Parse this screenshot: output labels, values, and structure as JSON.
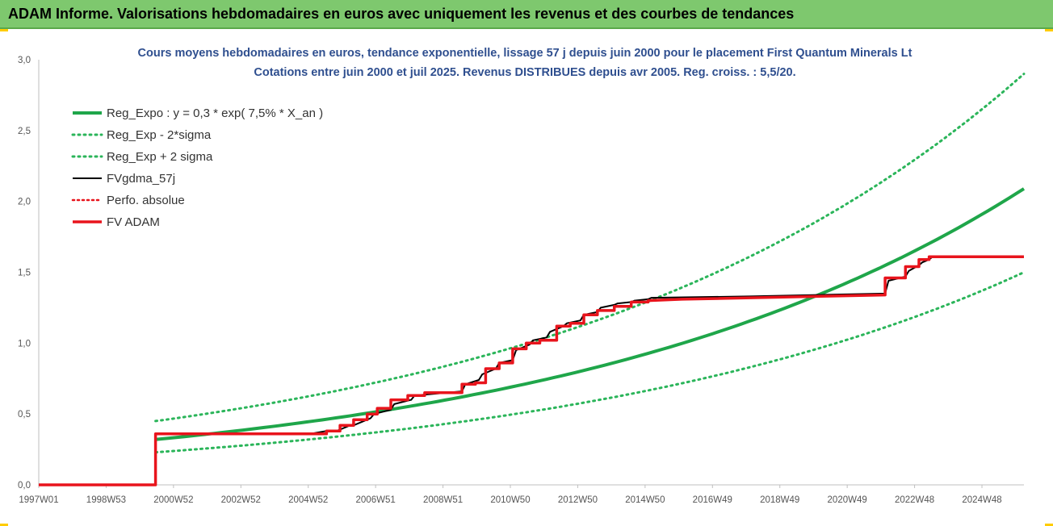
{
  "header": {
    "title": "ADAM Informe. Valorisations hebdomadaires en euros avec uniquement les revenus et des courbes de tendances"
  },
  "colors": {
    "header_bg": "#7ec86e",
    "reg_green": "#1fa64a",
    "band_green": "#2bb55a",
    "fv_black": "#000000",
    "fv_red": "#e8141c"
  },
  "chart_data": {
    "type": "line",
    "title_line1": "Cours moyens hebdomadaires en euros, tendance exponentielle, lissage 57 j depuis juin 2000 pour le placement First Quantum Minerals Lt",
    "title_line2": "Cotations entre juin 2000 et juil 2025. Revenus DISTRIBUES depuis avr 2005. Reg. croiss. : 5,5/20.",
    "xlabel": "",
    "ylabel": "",
    "x_range": [
      1997.0,
      2026.1
    ],
    "ylim": [
      0,
      3.0
    ],
    "y_ticks": [
      "0,0",
      "0,5",
      "1,0",
      "1,5",
      "2,0",
      "2,5",
      "3,0"
    ],
    "y_tick_values": [
      0,
      0.5,
      1.0,
      1.5,
      2.0,
      2.5,
      3.0
    ],
    "x_ticks": [
      "1997W01",
      "1998W53",
      "2000W52",
      "2002W52",
      "2004W52",
      "2006W51",
      "2008W51",
      "2010W50",
      "2012W50",
      "2014W50",
      "2016W49",
      "2018W49",
      "2020W49",
      "2022W48",
      "2024W48"
    ],
    "x_tick_values": [
      1997.0,
      1998.99,
      2000.98,
      2002.97,
      2004.96,
      2006.95,
      2008.94,
      2010.93,
      2012.92,
      2014.91,
      2016.9,
      2018.89,
      2020.88,
      2022.87,
      2024.86
    ],
    "grid": false,
    "legend_position": "top-left",
    "series": [
      {
        "name": "Reg_Expo : y = 0,3 * exp( 7,5% *  X_an )",
        "style": "solid-green",
        "x": [
          2000.45,
          2003,
          2006,
          2009,
          2012,
          2015,
          2018,
          2021,
          2024,
          2026.1
        ],
        "y": [
          0.32,
          0.39,
          0.49,
          0.61,
          0.76,
          0.95,
          1.2,
          1.5,
          1.87,
          2.09
        ]
      },
      {
        "name": "Reg_Exp - 2*sigma",
        "style": "dotted-green",
        "x": [
          2000.45,
          2003,
          2006,
          2009,
          2012,
          2015,
          2018,
          2021,
          2024,
          2026.1
        ],
        "y": [
          0.23,
          0.28,
          0.35,
          0.44,
          0.55,
          0.69,
          0.86,
          1.08,
          1.35,
          1.5
        ]
      },
      {
        "name": "Reg_Exp + 2 sigma",
        "style": "dotted-green",
        "x": [
          2000.45,
          2003,
          2006,
          2009,
          2012,
          2015,
          2018,
          2021,
          2024,
          2026.1
        ],
        "y": [
          0.45,
          0.54,
          0.67,
          0.84,
          1.05,
          1.31,
          1.64,
          2.05,
          2.56,
          2.9
        ]
      },
      {
        "name": "FVgdma_57j",
        "style": "solid-black",
        "x": [
          1997.0,
          2000.45,
          2000.45,
          2005.0,
          2005.5,
          2005.8,
          2006.2,
          2006.3,
          2006.8,
          2006.9,
          2007.4,
          2007.5,
          2008.0,
          2008.1,
          2009.5,
          2009.6,
          2010.0,
          2010.1,
          2010.5,
          2010.6,
          2011.0,
          2011.1,
          2011.5,
          2011.6,
          2012.0,
          2012.1,
          2012.5,
          2012.6,
          2013.0,
          2013.1,
          2013.5,
          2013.6,
          2014.0,
          2014.1,
          2014.5,
          2014.6,
          2015.0,
          2015.1,
          2018.0,
          2020.0,
          2022.0,
          2022.1,
          2022.6,
          2022.7,
          2023.0,
          2023.1,
          2023.3,
          2023.4,
          2026.1
        ],
        "y": [
          0.0,
          0.0,
          0.36,
          0.36,
          0.38,
          0.38,
          0.42,
          0.42,
          0.47,
          0.5,
          0.53,
          0.57,
          0.6,
          0.63,
          0.66,
          0.71,
          0.74,
          0.78,
          0.82,
          0.86,
          0.88,
          0.95,
          0.99,
          1.02,
          1.04,
          1.08,
          1.12,
          1.14,
          1.16,
          1.2,
          1.22,
          1.25,
          1.27,
          1.28,
          1.29,
          1.3,
          1.31,
          1.32,
          1.33,
          1.34,
          1.35,
          1.44,
          1.47,
          1.51,
          1.55,
          1.57,
          1.59,
          1.61,
          1.61
        ]
      },
      {
        "name": "Perfo. absolue",
        "style": "dotted-red",
        "x": [],
        "y": []
      },
      {
        "name": "FV ADAM",
        "style": "solid-red",
        "x": [
          1997.0,
          2000.45,
          2000.45,
          2005.0,
          2005.0,
          2005.5,
          2005.5,
          2005.9,
          2005.9,
          2006.3,
          2006.3,
          2006.7,
          2006.7,
          2007.0,
          2007.0,
          2007.4,
          2007.4,
          2007.9,
          2007.9,
          2008.4,
          2008.4,
          2009.5,
          2009.5,
          2009.9,
          2009.9,
          2010.2,
          2010.2,
          2010.6,
          2010.6,
          2011.0,
          2011.0,
          2011.4,
          2011.4,
          2011.8,
          2011.8,
          2012.3,
          2012.3,
          2012.7,
          2012.7,
          2013.1,
          2013.1,
          2013.5,
          2013.5,
          2014.0,
          2014.0,
          2014.5,
          2014.5,
          2015.0,
          2015.0,
          2016.0,
          2022.0,
          2022.0,
          2022.6,
          2022.6,
          2023.0,
          2023.0,
          2023.3,
          2023.3,
          2026.1
        ],
        "y": [
          0.0,
          0.0,
          0.36,
          0.36,
          0.36,
          0.36,
          0.38,
          0.38,
          0.42,
          0.42,
          0.46,
          0.46,
          0.5,
          0.5,
          0.54,
          0.54,
          0.6,
          0.6,
          0.63,
          0.63,
          0.65,
          0.65,
          0.71,
          0.71,
          0.72,
          0.72,
          0.82,
          0.82,
          0.86,
          0.86,
          0.96,
          0.96,
          1.0,
          1.0,
          1.02,
          1.02,
          1.12,
          1.12,
          1.14,
          1.14,
          1.2,
          1.2,
          1.23,
          1.23,
          1.26,
          1.26,
          1.29,
          1.29,
          1.3,
          1.31,
          1.34,
          1.46,
          1.46,
          1.54,
          1.54,
          1.59,
          1.59,
          1.61,
          1.61
        ]
      }
    ]
  }
}
